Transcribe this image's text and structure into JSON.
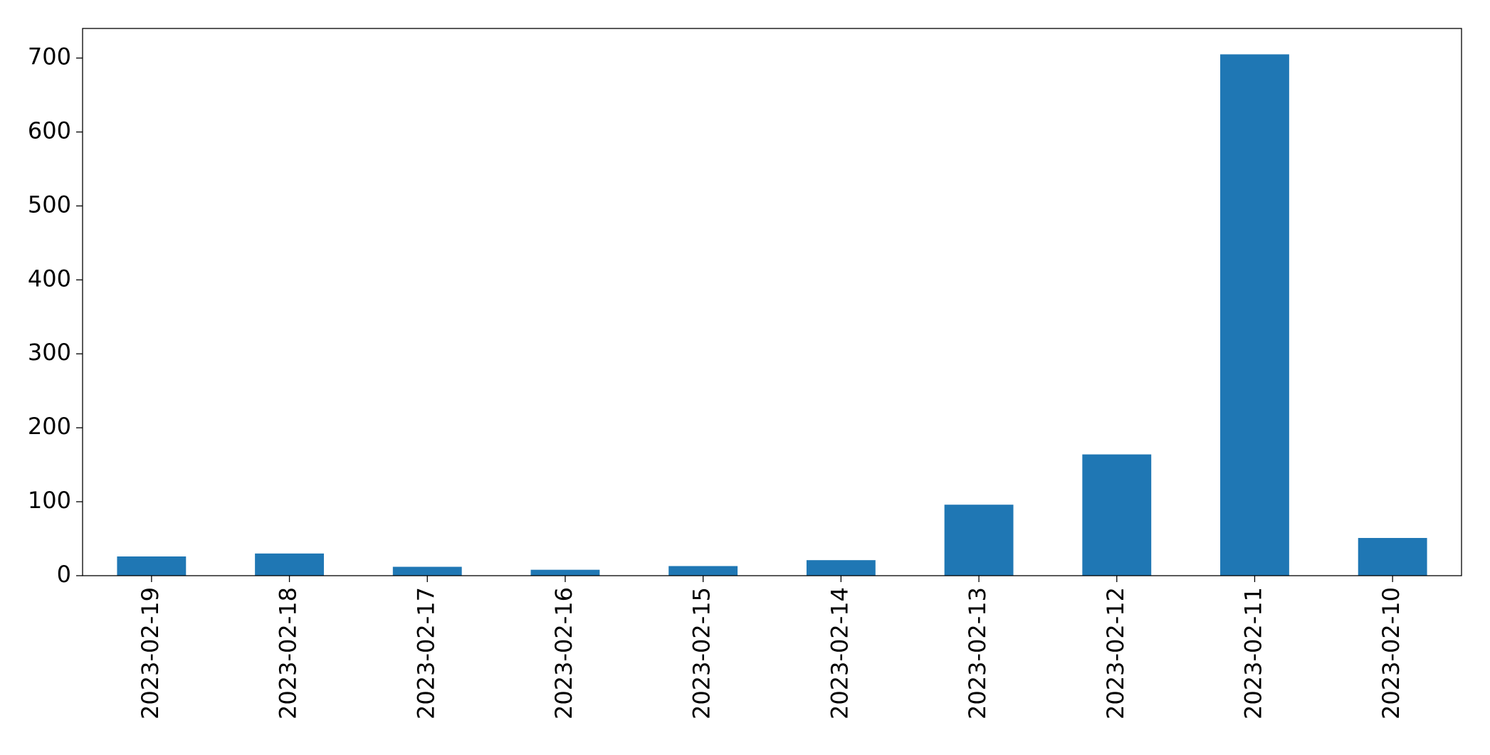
{
  "chart_data": {
    "type": "bar",
    "categories": [
      "2023-02-19",
      "2023-02-18",
      "2023-02-17",
      "2023-02-16",
      "2023-02-15",
      "2023-02-14",
      "2023-02-13",
      "2023-02-12",
      "2023-02-11",
      "2023-02-10"
    ],
    "values": [
      26,
      30,
      12,
      8,
      13,
      21,
      96,
      164,
      705,
      51
    ],
    "color": "#1f77b4",
    "ylim": [
      0,
      740
    ],
    "yticks": [
      0,
      100,
      200,
      300,
      400,
      500,
      600,
      700
    ],
    "grid": false
  }
}
